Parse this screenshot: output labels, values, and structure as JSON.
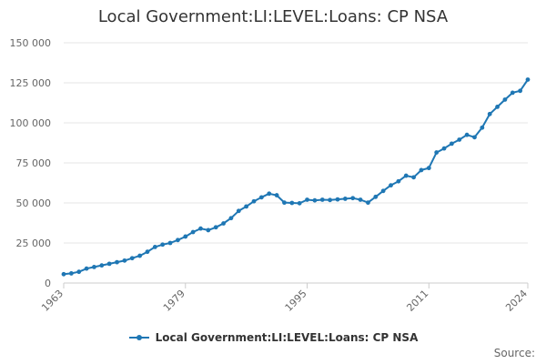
{
  "chart_data": {
    "type": "line",
    "title": "Local Government:LI:LEVEL:Loans: CP NSA",
    "xlabel": "",
    "ylabel": "",
    "xlim": [
      1963,
      2024
    ],
    "ylim": [
      0,
      150000
    ],
    "x_ticks": [
      1963,
      1979,
      1995,
      2011,
      2024
    ],
    "y_ticks": [
      0,
      25000,
      50000,
      75000,
      100000,
      125000,
      150000
    ],
    "y_tick_labels": [
      "0",
      "25 000",
      "50 000",
      "75 000",
      "100 000",
      "125 000",
      "150 000"
    ],
    "grid": true,
    "legend_position": "bottom",
    "color": "#1f77b4",
    "series": [
      {
        "name": "Local Government:LI:LEVEL:Loans: CP NSA",
        "x": [
          1963,
          1964,
          1965,
          1966,
          1967,
          1968,
          1969,
          1970,
          1971,
          1972,
          1973,
          1974,
          1975,
          1976,
          1977,
          1978,
          1979,
          1980,
          1981,
          1982,
          1983,
          1984,
          1985,
          1986,
          1987,
          1988,
          1989,
          1990,
          1991,
          1992,
          1993,
          1994,
          1995,
          1996,
          1997,
          1998,
          1999,
          2000,
          2001,
          2002,
          2003,
          2004,
          2005,
          2006,
          2007,
          2008,
          2009,
          2010,
          2011,
          2012,
          2013,
          2014,
          2015,
          2016,
          2017,
          2018,
          2019,
          2020,
          2021,
          2022,
          2023,
          2024
        ],
        "values": [
          5500,
          6000,
          7000,
          9000,
          10000,
          11000,
          12000,
          13000,
          14000,
          15500,
          17000,
          19500,
          22500,
          24000,
          25000,
          26800,
          29000,
          31800,
          34000,
          33000,
          34800,
          37200,
          40500,
          45000,
          47800,
          51000,
          53500,
          55800,
          54800,
          50200,
          50000,
          49800,
          52000,
          51600,
          52000,
          51800,
          52200,
          52600,
          53000,
          52000,
          50200,
          53800,
          57500,
          61000,
          63500,
          67000,
          66000,
          70500,
          71800,
          81500,
          84000,
          87000,
          89500,
          92500,
          91000,
          97000,
          105500,
          110000,
          114500,
          118800,
          120000,
          127000
        ]
      }
    ]
  },
  "legend": {
    "label": "Local Government:LI:LEVEL:Loans: CP NSA"
  },
  "footer": {
    "source_label": "Source:"
  }
}
